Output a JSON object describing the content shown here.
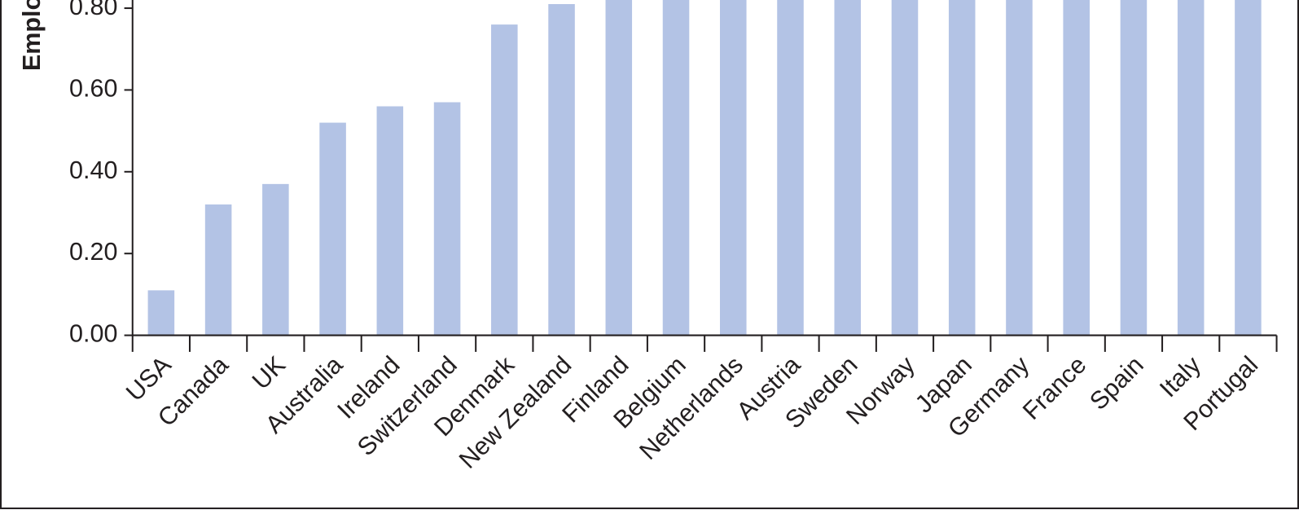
{
  "chart_data": {
    "type": "bar",
    "y_label": "Emplo",
    "categories": [
      "USA",
      "Canada",
      "UK",
      "Australia",
      "Ireland",
      "Switzerland",
      "Denmark",
      "New Zealand",
      "Finland",
      "Belgium",
      "Netherlands",
      "Austria",
      "Sweden",
      "Norway",
      "Japan",
      "Germany",
      "France",
      "Spain",
      "Italy",
      "Portugal"
    ],
    "values": [
      0.11,
      0.32,
      0.37,
      0.52,
      0.56,
      0.57,
      0.76,
      0.81,
      0.82,
      0.82,
      0.82,
      0.82,
      0.82,
      0.82,
      0.82,
      0.82,
      0.82,
      0.82,
      0.82,
      0.82
    ],
    "color": "#b3c3e5",
    "ylim": [
      0,
      0.82
    ],
    "yticks": [
      {
        "value": 0,
        "label": "0.00"
      },
      {
        "value": 0.2,
        "label": "0.20"
      },
      {
        "value": 0.4,
        "label": "0.40"
      },
      {
        "value": 0.6,
        "label": "0.60"
      },
      {
        "value": 0.8,
        "label": "0.80"
      }
    ]
  }
}
